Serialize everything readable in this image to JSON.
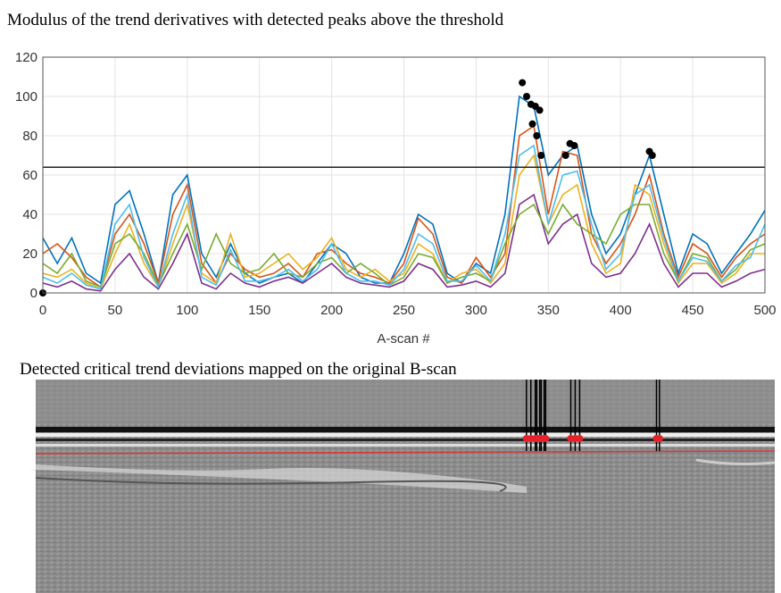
{
  "chart_data": {
    "type": "line",
    "title": "Modulus of the trend derivatives with detected peaks above the threshold",
    "x_label": "A-scan #",
    "x": [
      0,
      10,
      20,
      30,
      40,
      50,
      60,
      70,
      80,
      90,
      100,
      110,
      120,
      130,
      140,
      150,
      160,
      170,
      180,
      190,
      200,
      210,
      220,
      230,
      240,
      250,
      260,
      270,
      280,
      290,
      300,
      310,
      320,
      330,
      340,
      350,
      360,
      370,
      380,
      390,
      400,
      410,
      420,
      430,
      440,
      450,
      460,
      470,
      480,
      490,
      500
    ],
    "series": [
      {
        "color": "#0072bd",
        "values": [
          28,
          15,
          28,
          10,
          5,
          45,
          52,
          30,
          5,
          50,
          60,
          20,
          8,
          25,
          10,
          5,
          8,
          10,
          5,
          15,
          25,
          20,
          8,
          5,
          5,
          20,
          40,
          35,
          10,
          5,
          15,
          10,
          40,
          100,
          95,
          60,
          70,
          75,
          40,
          20,
          30,
          50,
          70,
          40,
          10,
          30,
          25,
          10,
          20,
          30,
          42
        ]
      },
      {
        "color": "#d95319",
        "values": [
          20,
          25,
          18,
          8,
          3,
          30,
          40,
          25,
          5,
          40,
          55,
          15,
          5,
          20,
          12,
          8,
          10,
          15,
          8,
          20,
          22,
          15,
          10,
          8,
          5,
          15,
          38,
          30,
          8,
          5,
          18,
          8,
          20,
          80,
          85,
          40,
          72,
          70,
          30,
          15,
          25,
          40,
          60,
          30,
          8,
          25,
          20,
          8,
          18,
          25,
          30
        ]
      },
      {
        "color": "#edb120",
        "values": [
          10,
          8,
          12,
          5,
          2,
          20,
          35,
          15,
          3,
          25,
          45,
          10,
          5,
          30,
          8,
          10,
          15,
          20,
          12,
          18,
          28,
          12,
          8,
          12,
          6,
          10,
          25,
          20,
          5,
          10,
          12,
          5,
          15,
          60,
          70,
          35,
          50,
          55,
          25,
          10,
          15,
          55,
          50,
          25,
          5,
          15,
          15,
          5,
          10,
          20,
          20
        ]
      },
      {
        "color": "#7e2f8e",
        "values": [
          5,
          3,
          6,
          2,
          1,
          12,
          20,
          8,
          2,
          15,
          30,
          5,
          2,
          10,
          5,
          3,
          6,
          8,
          5,
          10,
          15,
          8,
          5,
          4,
          3,
          6,
          15,
          12,
          3,
          4,
          6,
          3,
          10,
          45,
          50,
          25,
          35,
          40,
          15,
          8,
          10,
          20,
          35,
          15,
          3,
          10,
          10,
          3,
          6,
          10,
          12
        ]
      },
      {
        "color": "#77ac30",
        "values": [
          15,
          10,
          20,
          6,
          3,
          25,
          30,
          20,
          4,
          20,
          35,
          12,
          30,
          15,
          10,
          12,
          20,
          10,
          8,
          15,
          18,
          10,
          15,
          10,
          4,
          8,
          20,
          18,
          5,
          8,
          10,
          6,
          25,
          40,
          45,
          30,
          45,
          35,
          30,
          25,
          40,
          45,
          45,
          20,
          6,
          20,
          18,
          6,
          12,
          22,
          25
        ]
      },
      {
        "color": "#4dbeee",
        "values": [
          8,
          5,
          10,
          4,
          2,
          35,
          45,
          18,
          3,
          30,
          50,
          8,
          4,
          22,
          6,
          6,
          8,
          12,
          6,
          12,
          25,
          10,
          6,
          6,
          4,
          12,
          30,
          25,
          6,
          6,
          14,
          6,
          30,
          70,
          75,
          35,
          60,
          62,
          35,
          12,
          20,
          50,
          55,
          28,
          6,
          18,
          16,
          6,
          14,
          18,
          35
        ]
      }
    ],
    "peaks": {
      "color": "#000000",
      "x": [
        0,
        332,
        335,
        338,
        341,
        344,
        339,
        342,
        345,
        362,
        365,
        368,
        420,
        422
      ],
      "values": [
        0,
        107,
        100,
        96,
        95,
        93,
        86,
        80,
        70,
        70,
        76,
        75,
        72,
        70
      ]
    },
    "threshold": 64,
    "xlim": [
      0,
      500
    ],
    "xticks": [
      0,
      50,
      100,
      150,
      200,
      250,
      300,
      350,
      400,
      450,
      500
    ],
    "ylim": [
      0,
      120
    ],
    "yticks": [
      0,
      20,
      40,
      60,
      80,
      100,
      120
    ],
    "grid": true
  },
  "bscan": {
    "title": "Detected critical trend deviations mapped on the original B-scan",
    "marker_color": "#e8202a"
  }
}
